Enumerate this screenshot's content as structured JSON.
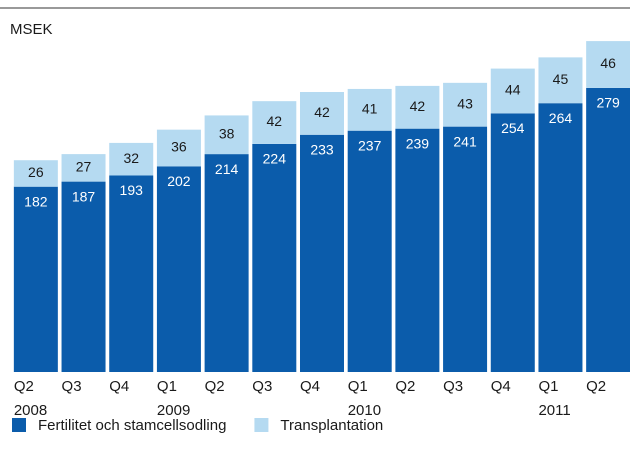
{
  "chart_data": {
    "type": "stacked_bar",
    "unit_label": "MSEK",
    "categories": [
      "Q2",
      "Q3",
      "Q4",
      "Q1",
      "Q2",
      "Q3",
      "Q4",
      "Q1",
      "Q2",
      "Q3",
      "Q4",
      "Q1",
      "Q2"
    ],
    "years": [
      "2008",
      null,
      null,
      "2009",
      null,
      null,
      null,
      "2010",
      null,
      null,
      null,
      "2011",
      null
    ],
    "series": [
      {
        "name": "Fertilitet och stamcellsodling",
        "color": "#0b5cab",
        "values": [
          182,
          187,
          193,
          202,
          214,
          224,
          233,
          237,
          239,
          241,
          254,
          264,
          279
        ]
      },
      {
        "name": "Transplantation",
        "color": "#b5daf1",
        "values": [
          26,
          27,
          32,
          36,
          38,
          42,
          42,
          41,
          42,
          43,
          44,
          45,
          46
        ]
      }
    ],
    "ylim": [
      0,
      330
    ],
    "legend": "bottom-left"
  }
}
